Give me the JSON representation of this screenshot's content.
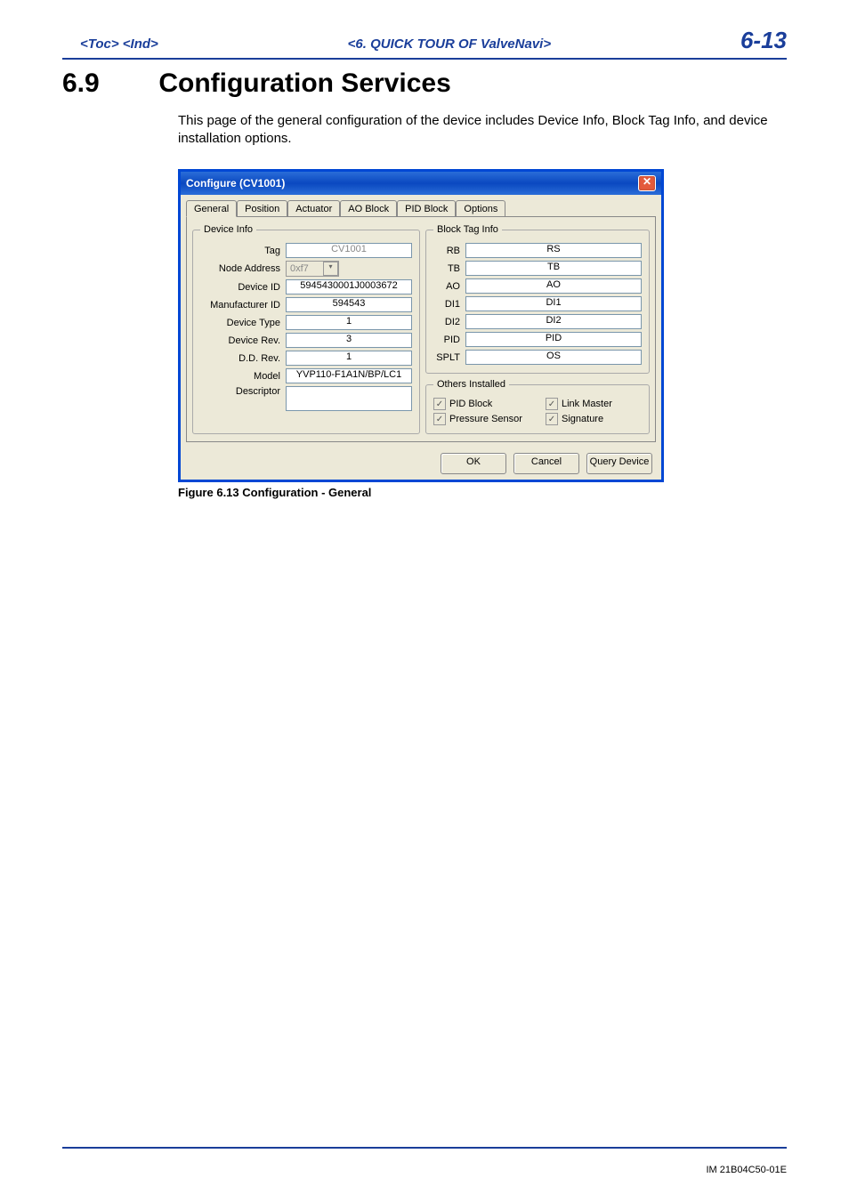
{
  "header": {
    "left": "<Toc> <Ind>",
    "center": "<6. QUICK TOUR OF ValveNavi>",
    "page": "6-13"
  },
  "section": {
    "number": "6.9",
    "title": "Configuration Services",
    "body": "This page of the general configuration of the device includes Device Info, Block Tag Info, and device installation options."
  },
  "dialog": {
    "title": "Configure (CV1001)",
    "tabs": [
      "General",
      "Position",
      "Actuator",
      "AO Block",
      "PID Block",
      "Options"
    ],
    "active_tab": "General",
    "device_info_legend": "Device Info",
    "device_info": {
      "tag_label": "Tag",
      "tag": "CV1001",
      "node_label": "Node Address",
      "node": "0xf7",
      "devid_label": "Device ID",
      "devid": "5945430001J0003672",
      "mfg_label": "Manufacturer ID",
      "mfg": "594543",
      "type_label": "Device Type",
      "type": "1",
      "rev_label": "Device Rev.",
      "rev": "3",
      "dd_label": "D.D. Rev.",
      "dd": "1",
      "model_label": "Model",
      "model": "YVP110-F1A1N/BP/LC1",
      "desc_label": "Descriptor",
      "desc": ""
    },
    "block_tag_legend": "Block Tag Info",
    "block_tag": {
      "rb_label": "RB",
      "rb": "RS",
      "tb_label": "TB",
      "tb": "TB",
      "ao_label": "AO",
      "ao": "AO",
      "di1_label": "DI1",
      "di1": "DI1",
      "di2_label": "DI2",
      "di2": "DI2",
      "pid_label": "PID",
      "pid": "PID",
      "splt_label": "SPLT",
      "splt": "OS"
    },
    "others_legend": "Others Installed",
    "others": {
      "pid_block": "PID Block",
      "link_master": "Link Master",
      "pressure_sensor": "Pressure Sensor",
      "signature": "Signature"
    },
    "buttons": {
      "ok": "OK",
      "cancel": "Cancel",
      "query": "Query Device"
    }
  },
  "caption": "Figure 6.13 Configuration - General",
  "footer": "IM 21B04C50-01E"
}
